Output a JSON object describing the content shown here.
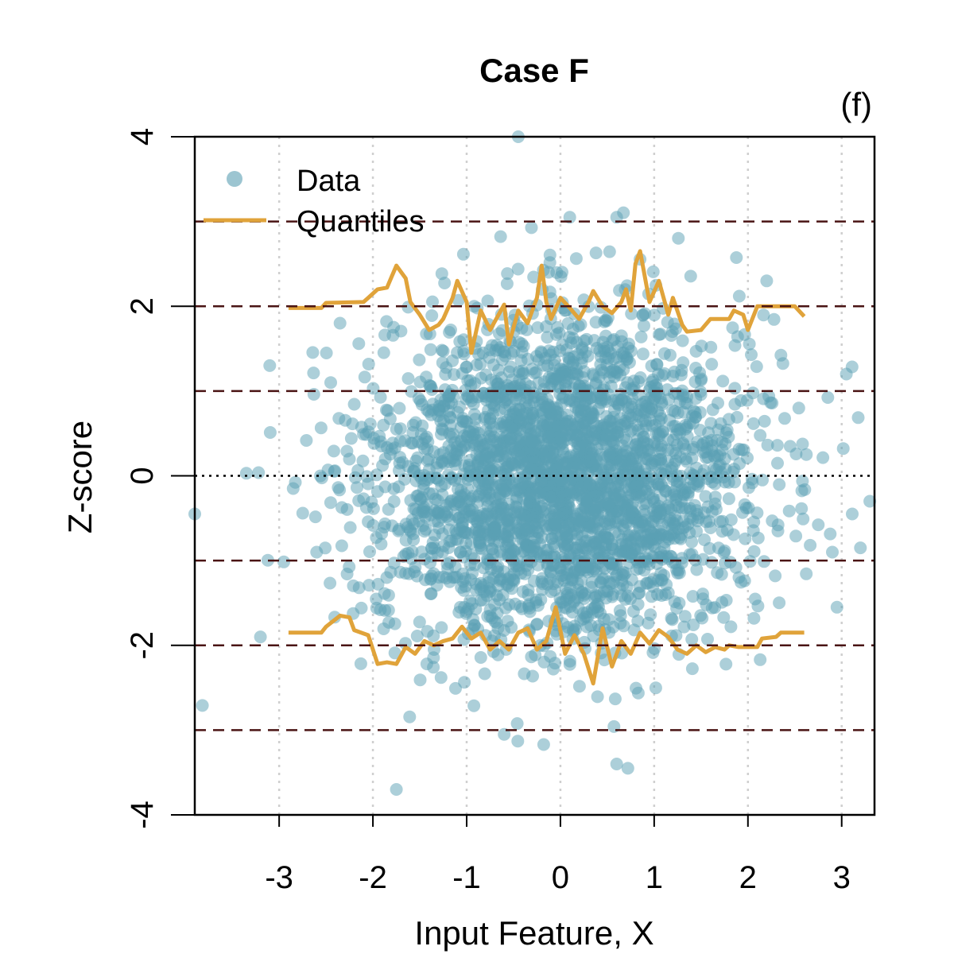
{
  "chart_data": {
    "type": "scatter",
    "title": "Case F",
    "panel_label": "(f)",
    "xlabel": "Input Feature, X",
    "ylabel": "Z-score",
    "xlim": [
      -3.9,
      3.35
    ],
    "ylim": [
      -4,
      4
    ],
    "xticks": [
      -3,
      -2,
      -1,
      0,
      1,
      2,
      3
    ],
    "xtick_labels": [
      "-3",
      "-2",
      "-1",
      "0",
      "1",
      "2",
      "3"
    ],
    "yticks": [
      -4,
      -2,
      0,
      2,
      4
    ],
    "ytick_labels": [
      "-4",
      "-2",
      "0",
      "2",
      "4"
    ],
    "grid": "vertical dotted at x ticks",
    "reference_lines": {
      "dashed": [
        -3,
        -2,
        -1,
        1,
        2,
        3
      ],
      "dotted": [
        0
      ]
    },
    "legend": {
      "position": "top-left",
      "entries": [
        {
          "label": "Data",
          "kind": "point",
          "color": "#5a9fb3"
        },
        {
          "label": "Quantiles",
          "kind": "line",
          "color": "#e0a33a"
        }
      ]
    },
    "colors": {
      "data": "#5a9fb3",
      "quantiles": "#e0a33a",
      "reference": "#4a1414"
    },
    "series": [
      {
        "name": "Quantiles (upper)",
        "type": "line",
        "points": [
          [
            -2.9,
            1.98
          ],
          [
            -2.55,
            1.98
          ],
          [
            -2.5,
            2.04
          ],
          [
            -2.1,
            2.05
          ],
          [
            -2.05,
            2.1
          ],
          [
            -1.95,
            2.2
          ],
          [
            -1.85,
            2.22
          ],
          [
            -1.8,
            2.35
          ],
          [
            -1.75,
            2.48
          ],
          [
            -1.65,
            2.33
          ],
          [
            -1.6,
            2.05
          ],
          [
            -1.5,
            1.9
          ],
          [
            -1.4,
            1.72
          ],
          [
            -1.3,
            1.78
          ],
          [
            -1.25,
            1.85
          ],
          [
            -1.15,
            2.1
          ],
          [
            -1.1,
            2.3
          ],
          [
            -1.0,
            2.05
          ],
          [
            -0.95,
            1.45
          ],
          [
            -0.85,
            1.95
          ],
          [
            -0.75,
            1.72
          ],
          [
            -0.6,
            2.02
          ],
          [
            -0.55,
            1.55
          ],
          [
            -0.45,
            1.95
          ],
          [
            -0.35,
            1.8
          ],
          [
            -0.25,
            2.1
          ],
          [
            -0.2,
            2.48
          ],
          [
            -0.15,
            2.05
          ],
          [
            -0.1,
            1.85
          ],
          [
            0.0,
            2.1
          ],
          [
            0.1,
            1.98
          ],
          [
            0.2,
            1.85
          ],
          [
            0.3,
            2.05
          ],
          [
            0.35,
            2.18
          ],
          [
            0.45,
            2.0
          ],
          [
            0.55,
            1.92
          ],
          [
            0.65,
            2.05
          ],
          [
            0.7,
            2.2
          ],
          [
            0.75,
            1.95
          ],
          [
            0.8,
            2.5
          ],
          [
            0.85,
            2.65
          ],
          [
            0.95,
            2.05
          ],
          [
            1.05,
            2.3
          ],
          [
            1.15,
            1.9
          ],
          [
            1.2,
            2.1
          ],
          [
            1.3,
            1.78
          ],
          [
            1.35,
            1.7
          ],
          [
            1.5,
            1.72
          ],
          [
            1.6,
            1.85
          ],
          [
            1.8,
            1.85
          ],
          [
            1.85,
            1.95
          ],
          [
            1.95,
            1.9
          ],
          [
            2.0,
            1.72
          ],
          [
            2.1,
            2.0
          ],
          [
            2.5,
            2.0
          ],
          [
            2.6,
            1.88
          ]
        ]
      },
      {
        "name": "Quantiles (lower)",
        "type": "line",
        "points": [
          [
            -2.9,
            -1.85
          ],
          [
            -2.55,
            -1.85
          ],
          [
            -2.5,
            -1.78
          ],
          [
            -2.35,
            -1.65
          ],
          [
            -2.25,
            -1.67
          ],
          [
            -2.2,
            -1.82
          ],
          [
            -2.05,
            -1.88
          ],
          [
            -1.95,
            -2.22
          ],
          [
            -1.85,
            -2.2
          ],
          [
            -1.75,
            -2.22
          ],
          [
            -1.65,
            -2.02
          ],
          [
            -1.55,
            -2.1
          ],
          [
            -1.45,
            -1.95
          ],
          [
            -1.35,
            -2.0
          ],
          [
            -1.25,
            -1.95
          ],
          [
            -1.15,
            -1.92
          ],
          [
            -1.05,
            -1.78
          ],
          [
            -0.95,
            -1.92
          ],
          [
            -0.85,
            -1.85
          ],
          [
            -0.75,
            -2.05
          ],
          [
            -0.65,
            -1.95
          ],
          [
            -0.55,
            -2.05
          ],
          [
            -0.45,
            -1.85
          ],
          [
            -0.35,
            -1.8
          ],
          [
            -0.25,
            -2.05
          ],
          [
            -0.15,
            -1.95
          ],
          [
            -0.05,
            -1.55
          ],
          [
            0.05,
            -2.1
          ],
          [
            0.15,
            -1.88
          ],
          [
            0.25,
            -2.1
          ],
          [
            0.35,
            -2.45
          ],
          [
            0.45,
            -1.8
          ],
          [
            0.55,
            -2.25
          ],
          [
            0.65,
            -1.95
          ],
          [
            0.75,
            -2.1
          ],
          [
            0.85,
            -1.85
          ],
          [
            0.95,
            -1.98
          ],
          [
            1.05,
            -1.82
          ],
          [
            1.15,
            -1.9
          ],
          [
            1.25,
            -2.05
          ],
          [
            1.35,
            -2.1
          ],
          [
            1.45,
            -2.0
          ],
          [
            1.55,
            -2.08
          ],
          [
            1.65,
            -2.02
          ],
          [
            1.75,
            -2.05
          ],
          [
            1.8,
            -2.0
          ],
          [
            1.9,
            -2.02
          ],
          [
            2.1,
            -2.02
          ],
          [
            2.15,
            -1.92
          ],
          [
            2.3,
            -1.9
          ],
          [
            2.35,
            -1.85
          ],
          [
            2.6,
            -1.85
          ]
        ]
      },
      {
        "name": "Data (notable outliers)",
        "type": "scatter",
        "points": [
          [
            -3.9,
            -0.45
          ],
          [
            -3.35,
            0.03
          ],
          [
            -3.2,
            -1.9
          ],
          [
            -3.1,
            1.3
          ],
          [
            -2.85,
            -0.15
          ],
          [
            -2.6,
            -0.9
          ],
          [
            -2.45,
            1.1
          ],
          [
            -1.75,
            -3.7
          ],
          [
            -0.45,
            4.0
          ],
          [
            -0.6,
            -3.05
          ],
          [
            0.1,
            3.05
          ],
          [
            0.6,
            3.05
          ],
          [
            0.72,
            -3.45
          ],
          [
            0.6,
            -3.4
          ],
          [
            2.2,
            2.3
          ],
          [
            2.95,
            -1.55
          ],
          [
            3.05,
            1.2
          ],
          [
            3.2,
            -0.85
          ],
          [
            3.3,
            -0.3
          ]
        ]
      }
    ]
  }
}
